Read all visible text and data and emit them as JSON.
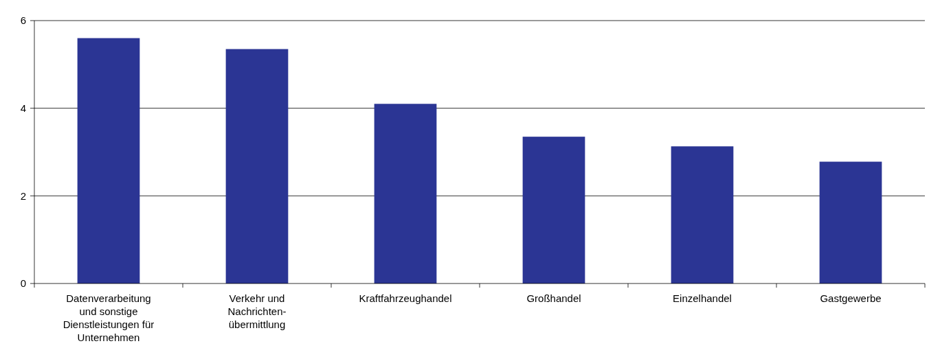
{
  "chart_data": {
    "type": "bar",
    "categories": [
      "Datenverarbeitung und sonstige Dienstleistungen für Unternehmen",
      "Verkehr und Nachrichten-übermittlung",
      "Kraftfahrzeughandel",
      "Großhandel",
      "Einzelhandel",
      "Gastgewerbe"
    ],
    "values": [
      5.6,
      5.35,
      4.1,
      3.35,
      3.13,
      2.78
    ],
    "color": "#2b3594",
    "ylim": [
      0,
      6
    ],
    "yticks": [
      0,
      2,
      4,
      6
    ],
    "grid": "y"
  }
}
